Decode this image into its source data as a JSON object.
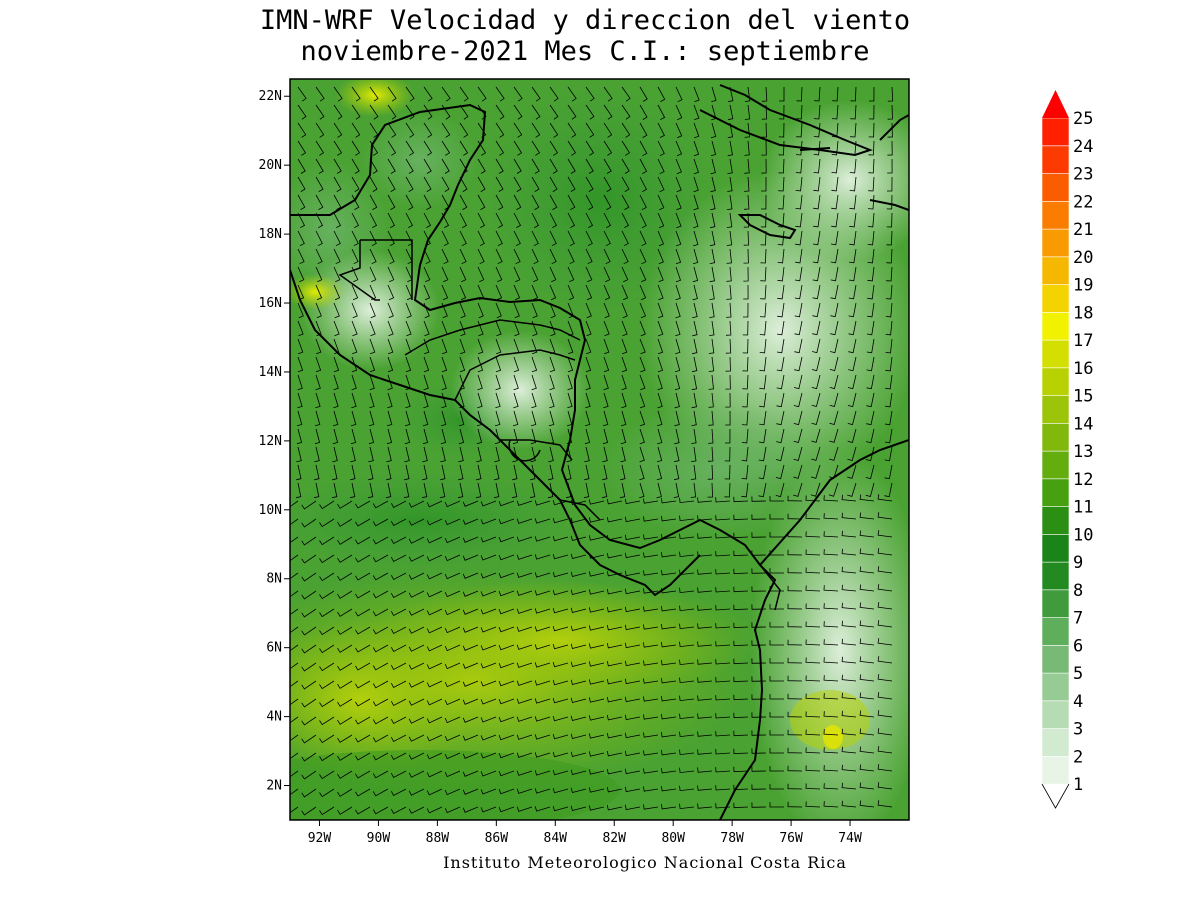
{
  "title_line1": "IMN-WRF Velocidad y direccion del viento",
  "title_line2": "noviembre-2021 Mes C.I.: septiembre",
  "credit": "Instituto Meteorologico Nacional Costa Rica",
  "lon_ticks": [
    "92W",
    "90W",
    "88W",
    "86W",
    "84W",
    "82W",
    "80W",
    "78W",
    "76W",
    "74W"
  ],
  "lat_ticks": [
    "22N",
    "20N",
    "18N",
    "16N",
    "14N",
    "12N",
    "10N",
    "8N",
    "6N",
    "4N",
    "2N"
  ],
  "lon_values": [
    -92,
    -90,
    -88,
    -86,
    -84,
    -82,
    -80,
    -78,
    -76,
    -74
  ],
  "lat_values": [
    22,
    20,
    18,
    16,
    14,
    12,
    10,
    8,
    6,
    4,
    2
  ],
  "extent": {
    "lon_min": -93,
    "lon_max": -72,
    "lat_min": 1,
    "lat_max": 22.5
  },
  "colorbar": {
    "levels": [
      "1",
      "2",
      "3",
      "4",
      "5",
      "6",
      "7",
      "8",
      "9",
      "10",
      "11",
      "12",
      "13",
      "14",
      "15",
      "16",
      "17",
      "18",
      "19",
      "20",
      "21",
      "22",
      "23",
      "24",
      "25"
    ],
    "colors": [
      "#e8f4e6",
      "#d2ead0",
      "#b6dcb3",
      "#96cb93",
      "#78ba75",
      "#5fae5c",
      "#3f9b3c",
      "#238a22",
      "#1b8419",
      "#2a8f13",
      "#46a010",
      "#63ad0e",
      "#80b80c",
      "#9cc408",
      "#b7d103",
      "#d3df00",
      "#f2f200",
      "#f4d400",
      "#f6b700",
      "#f89a00",
      "#fa7d00",
      "#fc5c00",
      "#fd3b00",
      "#fe2000",
      "#ff0000"
    ]
  }
}
